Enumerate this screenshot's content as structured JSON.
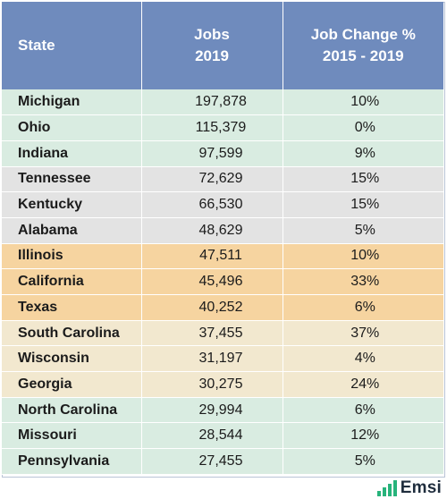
{
  "chart_data": {
    "type": "table",
    "columns": [
      "State",
      "Jobs 2019",
      "Job Change % 2015 - 2019"
    ],
    "header": {
      "state": "State",
      "jobs_line1": "Jobs",
      "jobs_line2": "2019",
      "change_line1": "Job Change %",
      "change_line2": "2015 - 2019"
    },
    "rows": [
      {
        "state": "Michigan",
        "jobs": "197,878",
        "change": "10%",
        "group": "green"
      },
      {
        "state": "Ohio",
        "jobs": "115,379",
        "change": "0%",
        "group": "green"
      },
      {
        "state": "Indiana",
        "jobs": "97,599",
        "change": "9%",
        "group": "green"
      },
      {
        "state": "Tennessee",
        "jobs": "72,629",
        "change": "15%",
        "group": "gray"
      },
      {
        "state": "Kentucky",
        "jobs": "66,530",
        "change": "15%",
        "group": "gray"
      },
      {
        "state": "Alabama",
        "jobs": "48,629",
        "change": "5%",
        "group": "gray"
      },
      {
        "state": "Illinois",
        "jobs": "47,511",
        "change": "10%",
        "group": "orange"
      },
      {
        "state": "California",
        "jobs": "45,496",
        "change": "33%",
        "group": "orange"
      },
      {
        "state": "Texas",
        "jobs": "40,252",
        "change": "6%",
        "group": "orange"
      },
      {
        "state": "South Carolina",
        "jobs": "37,455",
        "change": "37%",
        "group": "cream"
      },
      {
        "state": "Wisconsin",
        "jobs": "31,197",
        "change": "4%",
        "group": "cream"
      },
      {
        "state": "Georgia",
        "jobs": "30,275",
        "change": "24%",
        "group": "cream"
      },
      {
        "state": "North Carolina",
        "jobs": "29,994",
        "change": "6%",
        "group": "green"
      },
      {
        "state": "Missouri",
        "jobs": "28,544",
        "change": "12%",
        "group": "green"
      },
      {
        "state": "Pennsylvania",
        "jobs": "27,455",
        "change": "5%",
        "group": "green"
      }
    ]
  },
  "colors": {
    "header_bg": "#6f8bbd",
    "green": "#d9ece1",
    "gray": "#e3e3e3",
    "orange": "#f6d4a0",
    "cream": "#f2e8cf",
    "logo_bars": "#27b37b"
  },
  "logo": {
    "text": "Emsi",
    "icon": "bar-chart-icon"
  }
}
